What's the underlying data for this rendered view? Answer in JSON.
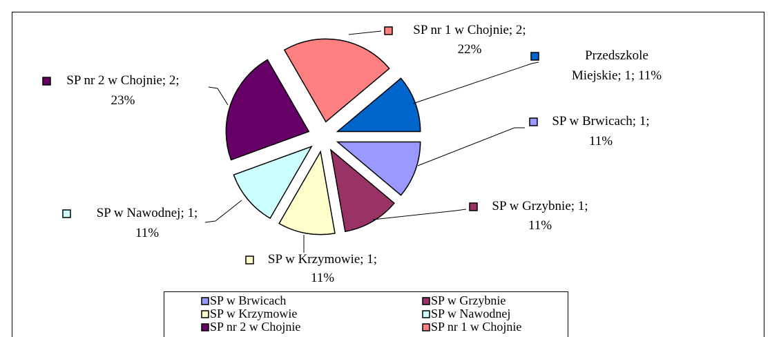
{
  "chart_data": {
    "type": "pie",
    "categories": [
      "Przedszkole Miejskie",
      "SP w Brwicach",
      "SP w Grzybnie",
      "SP w Krzymowie",
      "SP w Nawodnej",
      "SP nr 2 w Chojnie",
      "SP nr 1 w Chojnie"
    ],
    "values": [
      1,
      1,
      1,
      1,
      1,
      2,
      2
    ],
    "value_labels": [
      "Przedszkole Miejskie; 1; 11%",
      "SP w Brwicach; 1; 11%",
      "SP w Grzybnie; 1; 11%",
      "SP w Krzymowie; 1; 11%",
      "SP w Nawodnej; 1; 11%",
      "SP nr 2 w Chojnie; 2; 23%",
      "SP nr 1 w Chojnie; 2; 22%"
    ],
    "colors": [
      "#0066cc",
      "#9999ff",
      "#993366",
      "#ffffcc",
      "#ccffff",
      "#660066",
      "#ff8080"
    ],
    "start_angle": 50,
    "legend": "bottom"
  }
}
